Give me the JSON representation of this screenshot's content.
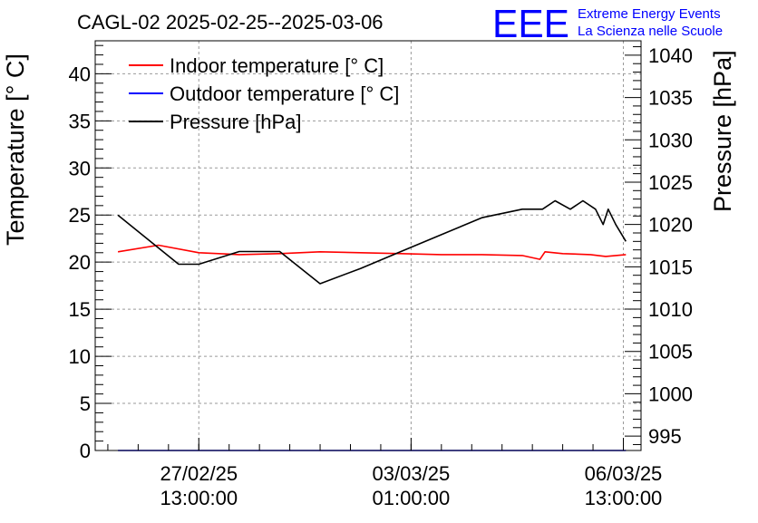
{
  "header": {
    "title": "CAGL-02 2025-02-25--2025-03-06",
    "logo_text": "EEE",
    "logo_line1": "Extreme Energy Events",
    "logo_line2": "La Scienza nelle Scuole"
  },
  "legend": [
    {
      "label": "Indoor temperature [° C]",
      "color": "#ff0000"
    },
    {
      "label": "Outdoor temperature [° C]",
      "color": "#0000ff"
    },
    {
      "label": "Pressure [hPa]",
      "color": "#000000"
    }
  ],
  "chart_data": {
    "type": "line",
    "title": "CAGL-02 2025-02-25--2025-03-06",
    "ylabel": "Temperature [° C]",
    "y2label": "Pressure [hPa]",
    "ylim": [
      0,
      43.5
    ],
    "y2lim": [
      993.3,
      1041.7
    ],
    "xlim": [
      "2025-02-25 20:00",
      "2025-03-06 20:00"
    ],
    "y_ticks": [
      0,
      5,
      10,
      15,
      20,
      25,
      30,
      35,
      40
    ],
    "y2_ticks": [
      995,
      1000,
      1005,
      1010,
      1015,
      1020,
      1025,
      1030,
      1035,
      1040
    ],
    "x_ticks": [
      {
        "x": "2025-02-27 13:00",
        "line1": "27/02/25",
        "line2": "13:00:00"
      },
      {
        "x": "2025-03-03 01:00",
        "line1": "03/03/25",
        "line2": "01:00:00"
      },
      {
        "x": "2025-03-06 13:00",
        "line1": "06/03/25",
        "line2": "13:00:00"
      }
    ],
    "grid": true,
    "legend_position": "top-left",
    "series": [
      {
        "name": "Indoor temperature [° C]",
        "axis": "left",
        "color": "#ff0000",
        "x": [
          "2025-02-26 05:00",
          "2025-02-26 21:00",
          "2025-02-27 13:00",
          "2025-02-28 05:00",
          "2025-02-28 21:00",
          "2025-03-01 13:00",
          "2025-03-02 05:00",
          "2025-03-02 21:00",
          "2025-03-03 13:00",
          "2025-03-04 05:00",
          "2025-03-04 21:00",
          "2025-03-05 04:00",
          "2025-03-05 06:00",
          "2025-03-05 13:00",
          "2025-03-06 00:00",
          "2025-03-06 06:00",
          "2025-03-06 14:00"
        ],
        "y": [
          21.1,
          21.8,
          21.0,
          20.8,
          20.9,
          21.1,
          21.0,
          20.9,
          20.8,
          20.8,
          20.7,
          20.3,
          21.1,
          20.9,
          20.8,
          20.6,
          20.8
        ]
      },
      {
        "name": "Outdoor temperature [° C]",
        "axis": "left",
        "color": "#0000ff",
        "x": [
          "2025-02-26 05:00",
          "2025-03-06 14:00"
        ],
        "y": [
          0.0,
          0.0
        ]
      },
      {
        "name": "Pressure [hPa]",
        "axis": "right",
        "color": "#000000",
        "x": [
          "2025-02-26 05:00",
          "2025-02-27 05:00",
          "2025-02-27 13:00",
          "2025-02-28 05:00",
          "2025-02-28 21:00",
          "2025-03-01 13:00",
          "2025-03-02 05:00",
          "2025-03-02 21:00",
          "2025-03-03 13:00",
          "2025-03-04 05:00",
          "2025-03-04 21:00",
          "2025-03-05 05:00",
          "2025-03-05 10:00",
          "2025-03-05 16:00",
          "2025-03-05 21:00",
          "2025-03-06 02:00",
          "2025-03-06 05:00",
          "2025-03-06 07:00",
          "2025-03-06 10:00",
          "2025-03-06 14:00"
        ],
        "y": [
          1021.1,
          1015.3,
          1015.3,
          1016.8,
          1016.8,
          1013.0,
          1014.8,
          1016.8,
          1018.8,
          1020.8,
          1021.8,
          1021.8,
          1022.8,
          1021.8,
          1022.8,
          1021.8,
          1020.0,
          1021.8,
          1020.0,
          1018.0
        ]
      }
    ]
  }
}
